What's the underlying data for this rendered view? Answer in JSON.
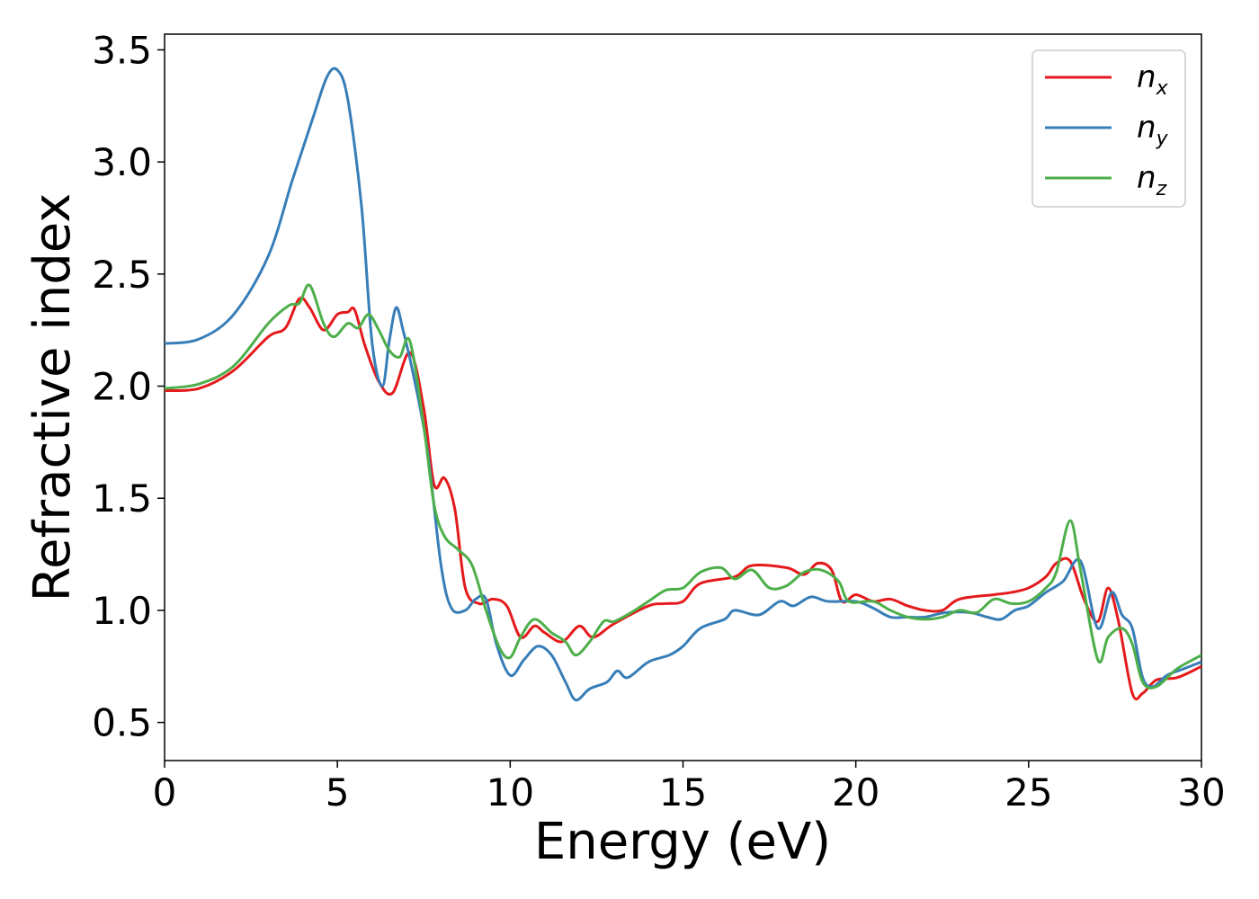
{
  "chart_data": {
    "type": "line",
    "title": "",
    "xlabel": "Energy (eV)",
    "ylabel": "Refractive index",
    "xlim": [
      0,
      30
    ],
    "ylim": [
      0.33,
      3.57
    ],
    "xticks": [
      "0",
      "5",
      "10",
      "15",
      "20",
      "25",
      "30"
    ],
    "yticks": [
      "0.5",
      "1.0",
      "1.5",
      "2.0",
      "2.5",
      "3.0",
      "3.5"
    ],
    "grid": false,
    "legend_position": "top-right",
    "series": [
      {
        "name": "n",
        "subscript": "x",
        "color": "#e41a1c",
        "points": [
          [
            0,
            1.98
          ],
          [
            1,
            1.99
          ],
          [
            2,
            2.07
          ],
          [
            3,
            2.22
          ],
          [
            3.5,
            2.26
          ],
          [
            3.9,
            2.39
          ],
          [
            4.2,
            2.35
          ],
          [
            4.6,
            2.25
          ],
          [
            5,
            2.32
          ],
          [
            5.3,
            2.33
          ],
          [
            5.5,
            2.34
          ],
          [
            5.8,
            2.18
          ],
          [
            6.2,
            2.02
          ],
          [
            6.6,
            1.97
          ],
          [
            7.1,
            2.15
          ],
          [
            7.5,
            1.9
          ],
          [
            7.8,
            1.56
          ],
          [
            8.1,
            1.59
          ],
          [
            8.4,
            1.45
          ],
          [
            8.7,
            1.1
          ],
          [
            9.1,
            1.03
          ],
          [
            9.5,
            1.05
          ],
          [
            9.9,
            1.02
          ],
          [
            10.3,
            0.88
          ],
          [
            10.7,
            0.93
          ],
          [
            11,
            0.9
          ],
          [
            11.5,
            0.86
          ],
          [
            12,
            0.93
          ],
          [
            12.4,
            0.88
          ],
          [
            13,
            0.94
          ],
          [
            14,
            1.02
          ],
          [
            14.5,
            1.03
          ],
          [
            15,
            1.04
          ],
          [
            15.5,
            1.12
          ],
          [
            16.5,
            1.15
          ],
          [
            17,
            1.2
          ],
          [
            18,
            1.19
          ],
          [
            18.5,
            1.16
          ],
          [
            18.9,
            1.21
          ],
          [
            19.3,
            1.18
          ],
          [
            19.6,
            1.04
          ],
          [
            20,
            1.07
          ],
          [
            20.5,
            1.04
          ],
          [
            21,
            1.05
          ],
          [
            21.5,
            1.02
          ],
          [
            22,
            1
          ],
          [
            22.5,
            1
          ],
          [
            23,
            1.05
          ],
          [
            24,
            1.07
          ],
          [
            24.5,
            1.08
          ],
          [
            25,
            1.1
          ],
          [
            25.5,
            1.15
          ],
          [
            25.8,
            1.21
          ],
          [
            26.2,
            1.22
          ],
          [
            26.6,
            1.05
          ],
          [
            27,
            0.95
          ],
          [
            27.3,
            1.1
          ],
          [
            27.6,
            0.95
          ],
          [
            28,
            0.63
          ],
          [
            28.3,
            0.63
          ],
          [
            28.7,
            0.69
          ],
          [
            29.3,
            0.7
          ],
          [
            30,
            0.75
          ]
        ]
      },
      {
        "name": "n",
        "subscript": "y",
        "color": "#377eb8",
        "points": [
          [
            0,
            2.19
          ],
          [
            1,
            2.21
          ],
          [
            2,
            2.32
          ],
          [
            3,
            2.58
          ],
          [
            3.7,
            2.92
          ],
          [
            4.3,
            3.2
          ],
          [
            4.7,
            3.38
          ],
          [
            5,
            3.41
          ],
          [
            5.3,
            3.28
          ],
          [
            5.7,
            2.8
          ],
          [
            6,
            2.2
          ],
          [
            6.3,
            2
          ],
          [
            6.5,
            2.2
          ],
          [
            6.7,
            2.35
          ],
          [
            6.9,
            2.25
          ],
          [
            7.2,
            2.05
          ],
          [
            7.6,
            1.72
          ],
          [
            8,
            1.2
          ],
          [
            8.3,
            1.01
          ],
          [
            8.7,
            1
          ],
          [
            9,
            1.05
          ],
          [
            9.3,
            1.05
          ],
          [
            9.6,
            0.85
          ],
          [
            10,
            0.71
          ],
          [
            10.4,
            0.78
          ],
          [
            10.8,
            0.84
          ],
          [
            11.2,
            0.8
          ],
          [
            11.6,
            0.68
          ],
          [
            11.9,
            0.6
          ],
          [
            12.3,
            0.65
          ],
          [
            12.8,
            0.68
          ],
          [
            13.1,
            0.73
          ],
          [
            13.4,
            0.7
          ],
          [
            14,
            0.77
          ],
          [
            14.6,
            0.8
          ],
          [
            15,
            0.84
          ],
          [
            15.5,
            0.92
          ],
          [
            16.2,
            0.96
          ],
          [
            16.5,
            1
          ],
          [
            17.2,
            0.98
          ],
          [
            17.8,
            1.04
          ],
          [
            18.2,
            1.02
          ],
          [
            18.7,
            1.06
          ],
          [
            19.2,
            1.04
          ],
          [
            20,
            1.04
          ],
          [
            20.5,
            1.01
          ],
          [
            21,
            0.97
          ],
          [
            21.5,
            0.97
          ],
          [
            22,
            0.97
          ],
          [
            22.6,
            0.99
          ],
          [
            23.3,
            0.99
          ],
          [
            23.8,
            0.97
          ],
          [
            24.2,
            0.96
          ],
          [
            24.6,
            1
          ],
          [
            25,
            1.02
          ],
          [
            25.5,
            1.08
          ],
          [
            26,
            1.13
          ],
          [
            26.5,
            1.22
          ],
          [
            27,
            0.92
          ],
          [
            27.4,
            1.08
          ],
          [
            27.7,
            0.98
          ],
          [
            28,
            0.92
          ],
          [
            28.3,
            0.7
          ],
          [
            28.6,
            0.66
          ],
          [
            29,
            0.71
          ],
          [
            29.5,
            0.74
          ],
          [
            30,
            0.77
          ]
        ]
      },
      {
        "name": "n",
        "subscript": "z",
        "color": "#4daf4a",
        "points": [
          [
            0,
            1.99
          ],
          [
            1,
            2.01
          ],
          [
            2,
            2.09
          ],
          [
            3,
            2.28
          ],
          [
            3.6,
            2.36
          ],
          [
            3.9,
            2.37
          ],
          [
            4.2,
            2.45
          ],
          [
            4.6,
            2.28
          ],
          [
            4.9,
            2.22
          ],
          [
            5.3,
            2.28
          ],
          [
            5.6,
            2.26
          ],
          [
            5.9,
            2.32
          ],
          [
            6.2,
            2.25
          ],
          [
            6.5,
            2.16
          ],
          [
            6.8,
            2.13
          ],
          [
            7.1,
            2.2
          ],
          [
            7.5,
            1.82
          ],
          [
            7.8,
            1.47
          ],
          [
            8.1,
            1.33
          ],
          [
            8.5,
            1.27
          ],
          [
            8.9,
            1.2
          ],
          [
            9.3,
            1
          ],
          [
            9.7,
            0.83
          ],
          [
            10,
            0.79
          ],
          [
            10.3,
            0.88
          ],
          [
            10.7,
            0.96
          ],
          [
            11.2,
            0.9
          ],
          [
            11.6,
            0.86
          ],
          [
            11.9,
            0.8
          ],
          [
            12.3,
            0.86
          ],
          [
            12.7,
            0.95
          ],
          [
            13,
            0.95
          ],
          [
            13.5,
            0.99
          ],
          [
            14,
            1.04
          ],
          [
            14.5,
            1.09
          ],
          [
            15,
            1.1
          ],
          [
            15.5,
            1.17
          ],
          [
            16.1,
            1.19
          ],
          [
            16.5,
            1.14
          ],
          [
            17,
            1.18
          ],
          [
            17.5,
            1.1
          ],
          [
            18,
            1.11
          ],
          [
            18.5,
            1.17
          ],
          [
            19,
            1.18
          ],
          [
            19.5,
            1.13
          ],
          [
            19.8,
            1.04
          ],
          [
            20.5,
            1.04
          ],
          [
            21,
            1
          ],
          [
            21.5,
            0.97
          ],
          [
            22,
            0.96
          ],
          [
            22.5,
            0.97
          ],
          [
            23,
            1
          ],
          [
            23.5,
            0.99
          ],
          [
            24,
            1.05
          ],
          [
            24.5,
            1.03
          ],
          [
            25,
            1.04
          ],
          [
            25.5,
            1.1
          ],
          [
            25.8,
            1.17
          ],
          [
            26.2,
            1.4
          ],
          [
            26.5,
            1.18
          ],
          [
            27,
            0.78
          ],
          [
            27.3,
            0.88
          ],
          [
            27.7,
            0.92
          ],
          [
            28,
            0.85
          ],
          [
            28.3,
            0.68
          ],
          [
            28.7,
            0.66
          ],
          [
            29.3,
            0.74
          ],
          [
            30,
            0.8
          ]
        ]
      }
    ]
  }
}
